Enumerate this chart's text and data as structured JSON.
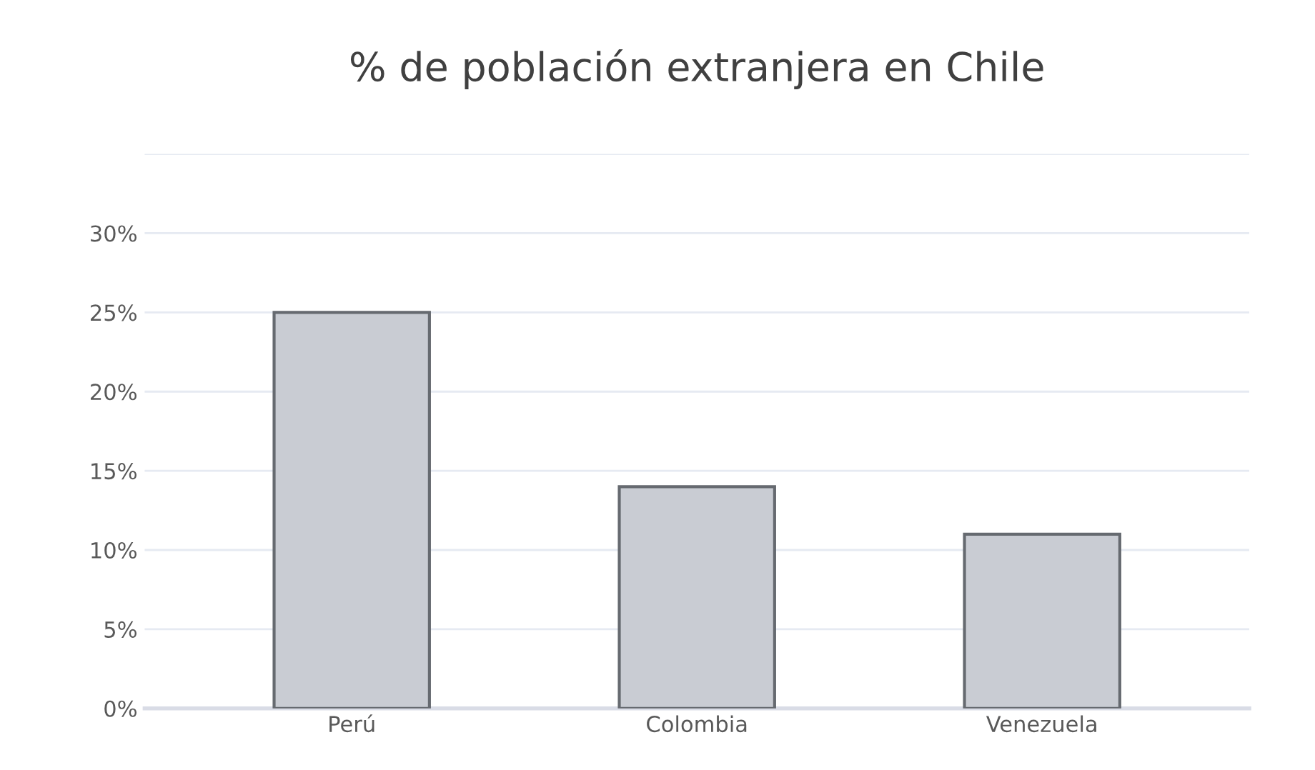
{
  "chart_data": {
    "type": "bar",
    "title": "% de población extranjera en Chile",
    "categories": [
      "Perú",
      "Colombia",
      "Venezuela"
    ],
    "values": [
      25,
      14,
      11
    ],
    "color": "#c9ccd3",
    "ylim": [
      0,
      35
    ],
    "yticks": [
      {
        "value": 0,
        "label": "0%"
      },
      {
        "value": 5,
        "label": "5%"
      },
      {
        "value": 10,
        "label": "10%"
      },
      {
        "value": 15,
        "label": "15%"
      },
      {
        "value": 20,
        "label": "20%"
      },
      {
        "value": 25,
        "label": "25%"
      },
      {
        "value": 30,
        "label": "30%"
      },
      {
        "value": 35,
        "label": null
      }
    ],
    "grid": "y"
  }
}
